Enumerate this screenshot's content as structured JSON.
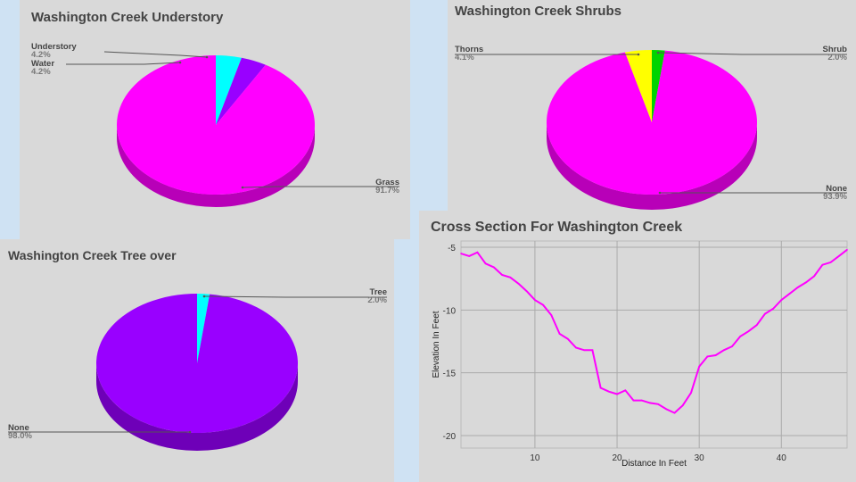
{
  "chart_data": [
    {
      "id": "understory",
      "type": "pie",
      "title": "Washington Creek Understory",
      "slices": [
        {
          "label": "Understory",
          "value": 4.2,
          "display": "4.2%",
          "color": "#00ffff",
          "side": "top"
        },
        {
          "label": "Water",
          "value": 4.2,
          "display": "4.2%",
          "color": "#9900ff",
          "side": "top"
        },
        {
          "label": "Grass",
          "value": 91.7,
          "display": "91.7%",
          "color": "#ff00ff",
          "side": "right"
        }
      ]
    },
    {
      "id": "shrubs",
      "type": "pie",
      "title": "Washington Creek Shrubs",
      "slices": [
        {
          "label": "Shrub",
          "value": 2.0,
          "display": "2.0%",
          "color": "#00d400",
          "side": "top-right"
        },
        {
          "label": "None",
          "value": 93.9,
          "display": "93.9%",
          "color": "#ff00ff",
          "side": "right"
        },
        {
          "label": "Thorns",
          "value": 4.1,
          "display": "4.1%",
          "color": "#ffff00",
          "side": "top-left"
        }
      ]
    },
    {
      "id": "tree",
      "type": "pie",
      "title": "Washington Creek Tree over",
      "slices": [
        {
          "label": "Tree",
          "value": 2.0,
          "display": "2.0%",
          "color": "#00ffff",
          "side": "top-right"
        },
        {
          "label": "None",
          "value": 98.0,
          "display": "98.0%",
          "color": "#9900ff",
          "side": "left"
        }
      ]
    },
    {
      "id": "cross-section",
      "type": "line",
      "title": "Cross Section For Washington Creek",
      "xlabel": "Distance In Feet",
      "ylabel": "Elevation In Feet",
      "xlim": [
        1,
        48
      ],
      "ylim": [
        -21,
        -4.5
      ],
      "xticks": [
        10,
        20,
        30,
        40
      ],
      "yticks": [
        -5,
        -10,
        -15,
        -20
      ],
      "grid": true,
      "color": "#ff00ff",
      "x": [
        1,
        2,
        3,
        4,
        5,
        6,
        7,
        8,
        9,
        10,
        11,
        12,
        13,
        14,
        15,
        16,
        17,
        18,
        19,
        20,
        21,
        22,
        23,
        24,
        25,
        26,
        27,
        28,
        29,
        30,
        31,
        32,
        33,
        34,
        35,
        36,
        37,
        38,
        39,
        40,
        41,
        42,
        43,
        44,
        45,
        46,
        47,
        48
      ],
      "y": [
        -5.5,
        -5.7,
        -5.4,
        -6.3,
        -6.6,
        -7.2,
        -7.4,
        -7.9,
        -8.5,
        -9.2,
        -9.6,
        -10.4,
        -11.9,
        -12.3,
        -13.0,
        -13.2,
        -13.2,
        -16.2,
        -16.5,
        -16.7,
        -16.4,
        -17.2,
        -17.2,
        -17.4,
        -17.5,
        -17.9,
        -18.2,
        -17.6,
        -16.6,
        -14.5,
        -13.7,
        -13.6,
        -13.2,
        -12.9,
        -12.1,
        -11.7,
        -11.2,
        -10.3,
        -9.9,
        -9.2,
        -8.7,
        -8.2,
        -7.8,
        -7.3,
        -6.4,
        -6.2,
        -5.7,
        -5.2
      ]
    }
  ]
}
